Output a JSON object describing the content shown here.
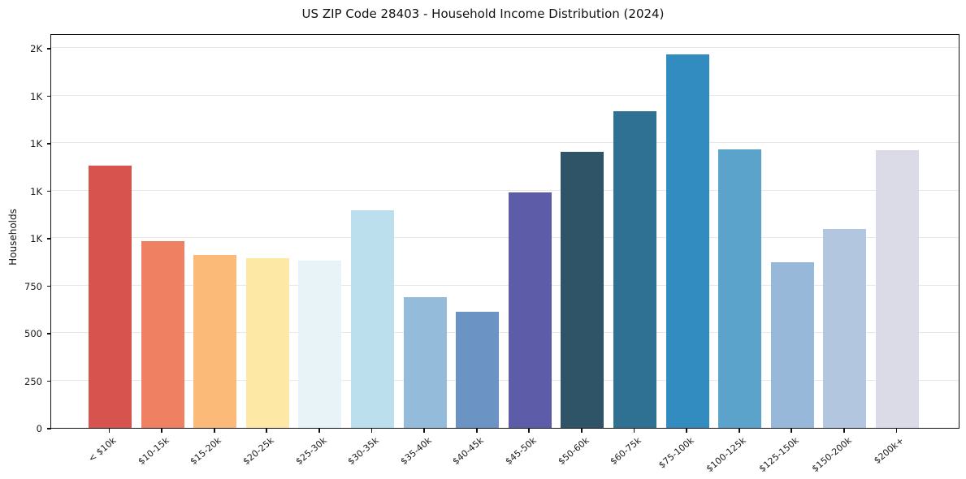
{
  "chart_data": {
    "type": "bar",
    "title": "US ZIP Code 28403 - Household Income Distribution (2024)",
    "xlabel": "",
    "ylabel": "Households",
    "categories": [
      "< $10k",
      "$10-15k",
      "$15-20k",
      "$20-25k",
      "$25-30k",
      "$30-35k",
      "$35-40k",
      "$40-45k",
      "$45-50k",
      "$50-60k",
      "$60-75k",
      "$75-100k",
      "$100-125k",
      "$125-150k",
      "$150-200k",
      "$200k+"
    ],
    "values": [
      1380,
      985,
      910,
      895,
      880,
      1145,
      690,
      610,
      1240,
      1455,
      1665,
      1965,
      1465,
      870,
      1045,
      1460
    ],
    "bar_colors": [
      "#d7534e",
      "#ef8061",
      "#fbba77",
      "#fde8a6",
      "#e8f3f7",
      "#bcdfed",
      "#94bcda",
      "#6b93c4",
      "#5c5ca8",
      "#2f5468",
      "#2e7193",
      "#338cc0",
      "#5ba3cb",
      "#97b8d8",
      "#b3c6e0",
      "#dbdae7"
    ],
    "ylim": [
      0,
      2077
    ],
    "yticks": [
      {
        "value": 0,
        "label": "0"
      },
      {
        "value": 250,
        "label": "250"
      },
      {
        "value": 500,
        "label": "500"
      },
      {
        "value": 750,
        "label": "750"
      },
      {
        "value": 1000,
        "label": "1K"
      },
      {
        "value": 1250,
        "label": "1K"
      },
      {
        "value": 1500,
        "label": "1K"
      },
      {
        "value": 1750,
        "label": "1K"
      },
      {
        "value": 2000,
        "label": "2K"
      }
    ],
    "grid": true,
    "grid_color": "#e7e7e7",
    "spine_color": "#111111",
    "background_color": "#ffffff",
    "legend": null
  }
}
